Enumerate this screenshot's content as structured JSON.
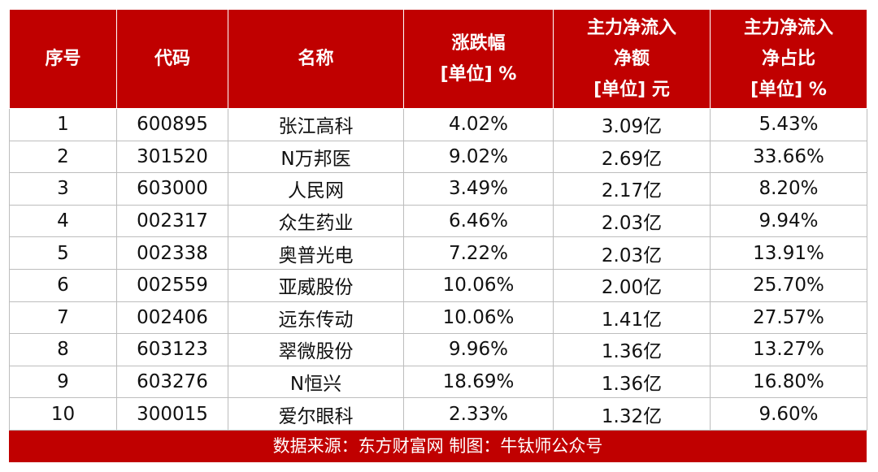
{
  "headers": [
    {
      "lines": [
        "序号"
      ]
    },
    {
      "lines": [
        "代码"
      ]
    },
    {
      "lines": [
        "名称"
      ]
    },
    {
      "lines": [
        "涨跌幅",
        "[单位] %"
      ]
    },
    {
      "lines": [
        "主力净流入",
        "净额",
        "[单位] 元"
      ]
    },
    {
      "lines": [
        "主力净流入",
        "净占比",
        "[单位] %"
      ]
    }
  ],
  "rows": [
    [
      "1",
      "600895",
      "张江高科",
      "4.02%",
      "3.09亿",
      "5.43%"
    ],
    [
      "2",
      "301520",
      "N万邦医",
      "9.02%",
      "2.69亿",
      "33.66%"
    ],
    [
      "3",
      "603000",
      "人民网",
      "3.49%",
      "2.17亿",
      "8.20%"
    ],
    [
      "4",
      "002317",
      "众生药业",
      "6.46%",
      "2.03亿",
      "9.94%"
    ],
    [
      "5",
      "002338",
      "奥普光电",
      "7.22%",
      "2.03亿",
      "13.91%"
    ],
    [
      "6",
      "002559",
      "亚威股份",
      "10.06%",
      "2.00亿",
      "25.70%"
    ],
    [
      "7",
      "002406",
      "远东传动",
      "10.06%",
      "1.41亿",
      "27.57%"
    ],
    [
      "8",
      "603123",
      "翠微股份",
      "9.96%",
      "1.36亿",
      "13.27%"
    ],
    [
      "9",
      "603276",
      "N恒兴",
      "18.69%",
      "1.36亿",
      "16.80%"
    ],
    [
      "10",
      "300015",
      "爱尔眼科",
      "2.33%",
      "1.32亿",
      "9.60%"
    ]
  ],
  "footer": "数据来源：东方财富网  制图：牛钛师公众号",
  "colors": {
    "accent": "#c00000",
    "text": "#111111",
    "grid": "#bdbdbd"
  }
}
